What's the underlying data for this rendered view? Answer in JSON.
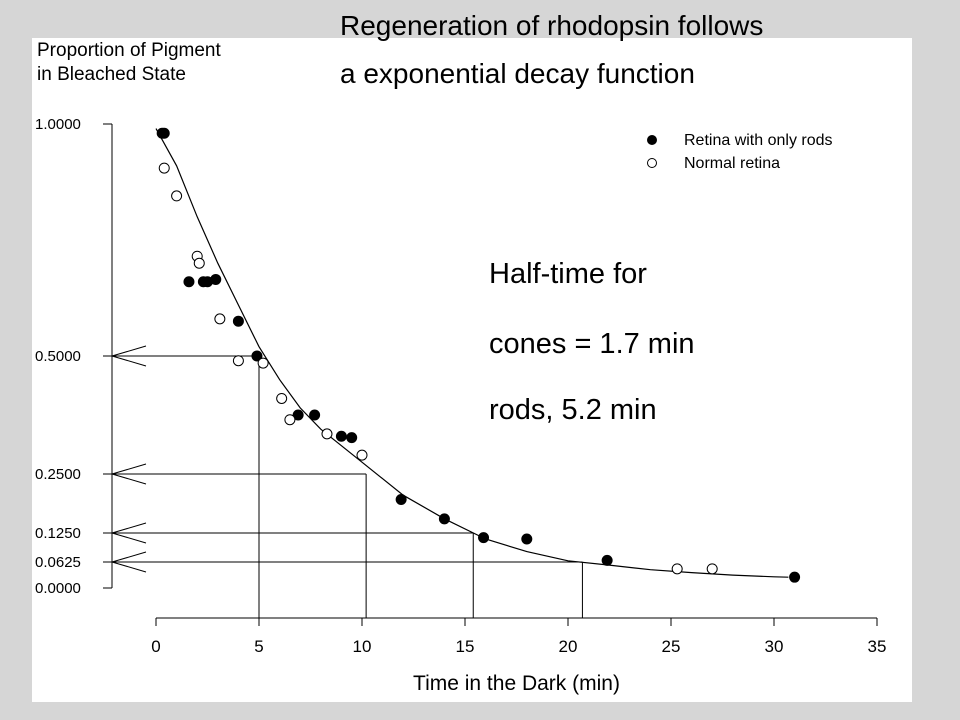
{
  "slide": {
    "title_line_1": "Regeneration of rhodopsin follows",
    "title_line_2": "a exponential decay function"
  },
  "annotation": {
    "line_1": "Half-time for",
    "line_2": "cones = 1.7 min",
    "line_3": "rods, 5.2 min"
  },
  "chart_data": {
    "type": "scatter",
    "ylabel_line_1": "Proportion of Pigment",
    "ylabel_line_2": "in Bleached State",
    "xlabel": "Time in the Dark (min)",
    "xlim": [
      0,
      35
    ],
    "x_ticks": [
      0,
      5,
      10,
      15,
      20,
      25,
      30,
      35
    ],
    "y_ticks": [
      {
        "value": 1.0,
        "label": "1.0000"
      },
      {
        "value": 0.5,
        "label": "0.5000"
      },
      {
        "value": 0.25,
        "label": "0.2500"
      },
      {
        "value": 0.125,
        "label": "0.1250"
      },
      {
        "value": 0.0625,
        "label": "0.0625"
      },
      {
        "value": 0.0,
        "label": "0.0000"
      }
    ],
    "y_scale": "decay-proportion (nonlinear)",
    "legend_position": "top-right",
    "series": [
      {
        "name": "Retina with only rods",
        "marker": "filled-circle",
        "color": "#000000",
        "points": [
          [
            0.3,
            0.98
          ],
          [
            0.4,
            0.98
          ],
          [
            1.6,
            0.66
          ],
          [
            2.3,
            0.66
          ],
          [
            2.5,
            0.66
          ],
          [
            2.9,
            0.665
          ],
          [
            4.0,
            0.575
          ],
          [
            4.9,
            0.5
          ],
          [
            6.9,
            0.375
          ],
          [
            7.7,
            0.375
          ],
          [
            9.0,
            0.33
          ],
          [
            9.5,
            0.327
          ],
          [
            11.9,
            0.196
          ],
          [
            14.0,
            0.155
          ],
          [
            15.9,
            0.115
          ],
          [
            18.0,
            0.112
          ],
          [
            21.9,
            0.066
          ],
          [
            31.0,
            0.026
          ]
        ]
      },
      {
        "name": "Normal retina",
        "marker": "open-circle",
        "color": "#000000",
        "points": [
          [
            0.4,
            0.905
          ],
          [
            1.0,
            0.845
          ],
          [
            2.0,
            0.715
          ],
          [
            2.1,
            0.7
          ],
          [
            3.1,
            0.58
          ],
          [
            4.0,
            0.49
          ],
          [
            5.2,
            0.485
          ],
          [
            6.1,
            0.41
          ],
          [
            6.5,
            0.365
          ],
          [
            8.3,
            0.335
          ],
          [
            10.0,
            0.29
          ],
          [
            25.3,
            0.046
          ],
          [
            27.0,
            0.046
          ]
        ]
      }
    ],
    "fit_curve": {
      "type": "exponential-decay",
      "points": [
        [
          0.0,
          0.99
        ],
        [
          1.0,
          0.91
        ],
        [
          2.0,
          0.8
        ],
        [
          3.0,
          0.7
        ],
        [
          4.0,
          0.61
        ],
        [
          5.0,
          0.52
        ],
        [
          6.0,
          0.45
        ],
        [
          7.0,
          0.39
        ],
        [
          8.0,
          0.345
        ],
        [
          9.0,
          0.31
        ],
        [
          10.0,
          0.275
        ],
        [
          12.0,
          0.205
        ],
        [
          14.0,
          0.155
        ],
        [
          16.0,
          0.112
        ],
        [
          18.0,
          0.085
        ],
        [
          20.0,
          0.065
        ],
        [
          22.0,
          0.055
        ],
        [
          24.0,
          0.044
        ],
        [
          26.0,
          0.037
        ],
        [
          28.0,
          0.031
        ],
        [
          30.0,
          0.027
        ],
        [
          30.7,
          0.026
        ]
      ]
    },
    "guide_lines": [
      {
        "y": 0.5,
        "x": 5.0
      },
      {
        "y": 0.25,
        "x": 10.2
      },
      {
        "y": 0.125,
        "x": 15.4
      },
      {
        "y": 0.0625,
        "x": 20.7
      }
    ]
  }
}
